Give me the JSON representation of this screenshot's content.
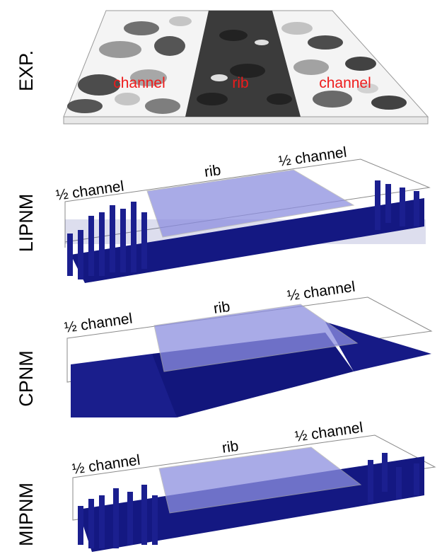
{
  "colors": {
    "pillar": "#1b1f8f",
    "pillar_dark": "#0c0f63",
    "rib_overlay": "#8d8fe0",
    "box_edge": "#8a8a8a",
    "exp_label": "#ee1b1b",
    "exp_dark": "#2f2f2f",
    "exp_light": "#cfcfcf"
  },
  "rows": [
    {
      "id": "exp",
      "label": "EXP.",
      "regions": [
        "channel",
        "rib",
        "channel"
      ]
    },
    {
      "id": "lipnm",
      "label": "LIPNM",
      "regions": [
        "½ channel",
        "rib",
        "½ channel"
      ]
    },
    {
      "id": "cpnm",
      "label": "CPNM",
      "regions": [
        "½ channel",
        "rib",
        "½ channel"
      ]
    },
    {
      "id": "mipnm",
      "label": "MIPNM",
      "regions": [
        "½ channel",
        "rib",
        "½ channel"
      ]
    }
  ]
}
